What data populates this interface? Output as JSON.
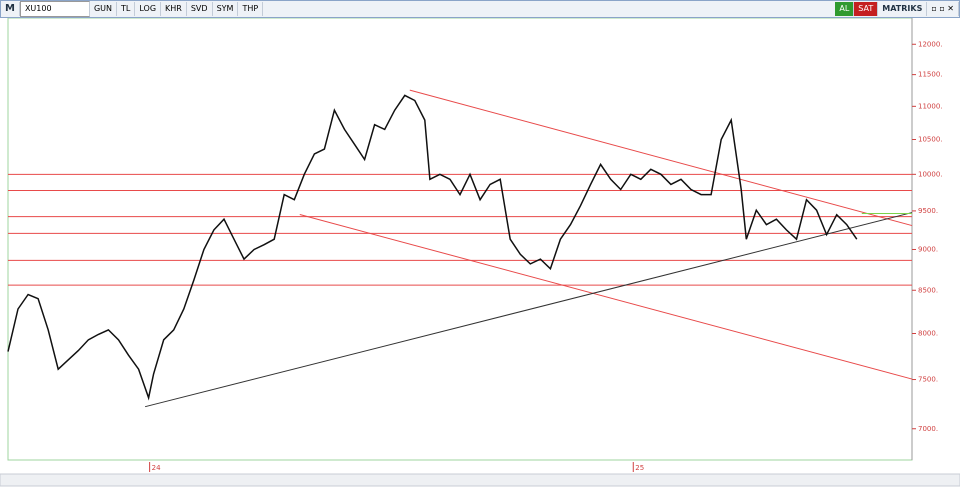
{
  "toolbar": {
    "logo": "M",
    "symbol": "XU100",
    "buttons": [
      "GUN",
      "TL",
      "LOG",
      "KHR",
      "SVD",
      "SYM",
      "THP"
    ],
    "buy": "AL",
    "sell": "SAT",
    "brand": "MATRIKS"
  },
  "chart_data": {
    "type": "line",
    "log_scale": true,
    "color": "#111111",
    "x": [
      0,
      2,
      4,
      6,
      8,
      10,
      12,
      14,
      16,
      18,
      20,
      22,
      24,
      26,
      28,
      29,
      31,
      33,
      35,
      37,
      39,
      41,
      43,
      45,
      47,
      49,
      51,
      53,
      55,
      57,
      59,
      61,
      63,
      65,
      67,
      69,
      71,
      73,
      75,
      77,
      79,
      81,
      83,
      84,
      86,
      88,
      90,
      92,
      94,
      96,
      98,
      100,
      102,
      104,
      106,
      108,
      110,
      112,
      114,
      116,
      118,
      120,
      122,
      124,
      126,
      128,
      130,
      132,
      134,
      136,
      138,
      140,
      142,
      144,
      146,
      147,
      149,
      151,
      153,
      155,
      157,
      159,
      161,
      163,
      165,
      167,
      169
    ],
    "values": [
      7800,
      8280,
      8450,
      8400,
      8040,
      7610,
      7710,
      7810,
      7930,
      7990,
      8040,
      7930,
      7760,
      7610,
      7310,
      7560,
      7930,
      8040,
      8280,
      8620,
      9000,
      9250,
      9390,
      9130,
      8880,
      9000,
      9060,
      9130,
      9720,
      9650,
      10000,
      10290,
      10360,
      10940,
      10650,
      10430,
      10210,
      10720,
      10650,
      10940,
      11170,
      11090,
      10790,
      9930,
      10000,
      9930,
      9720,
      10000,
      9650,
      9860,
      9930,
      9130,
      8940,
      8820,
      8880,
      8760,
      9130,
      9320,
      9570,
      9860,
      10140,
      9930,
      9790,
      10000,
      9930,
      10070,
      10000,
      9860,
      9930,
      9790,
      9720,
      9720,
      10500,
      10790,
      9790,
      9130,
      9510,
      9320,
      9390,
      9250,
      9130,
      9650,
      9510,
      9190,
      9450,
      9320,
      9130
    ],
    "xlim": [
      0,
      180
    ],
    "ylim": [
      6700,
      12450
    ],
    "xticks": [
      {
        "value": 28.2,
        "label": "24"
      },
      {
        "value": 124.5,
        "label": "25"
      }
    ],
    "yticks": [
      {
        "value": 7000,
        "label": "7000."
      },
      {
        "value": 7500,
        "label": "7500."
      },
      {
        "value": 8000,
        "label": "8000."
      },
      {
        "value": 8500,
        "label": "8500."
      },
      {
        "value": 9000,
        "label": "9000."
      },
      {
        "value": 9500,
        "label": "9500."
      },
      {
        "value": 10000,
        "label": "10000."
      },
      {
        "value": 10500,
        "label": "10500."
      },
      {
        "value": 11000,
        "label": "11000."
      },
      {
        "value": 11500,
        "label": "11500."
      },
      {
        "value": 12000,
        "label": "12000."
      }
    ],
    "levels": [
      10000,
      9775,
      9425,
      9205,
      8864,
      8561
    ],
    "level_color": "#e84a4a",
    "trendlines": [
      {
        "color": "#e84a4a",
        "points": [
          [
            80,
            11253
          ],
          [
            180,
            9307
          ]
        ]
      },
      {
        "color": "#e84a4a",
        "points": [
          [
            58.1,
            9452
          ],
          [
            180,
            7505
          ]
        ]
      },
      {
        "color": "#333333",
        "points": [
          [
            27.3,
            7220
          ],
          [
            180,
            9478
          ]
        ]
      },
      {
        "color": "#7cd34a",
        "points": [
          [
            170,
            9465
          ],
          [
            180,
            9465
          ]
        ]
      }
    ]
  }
}
